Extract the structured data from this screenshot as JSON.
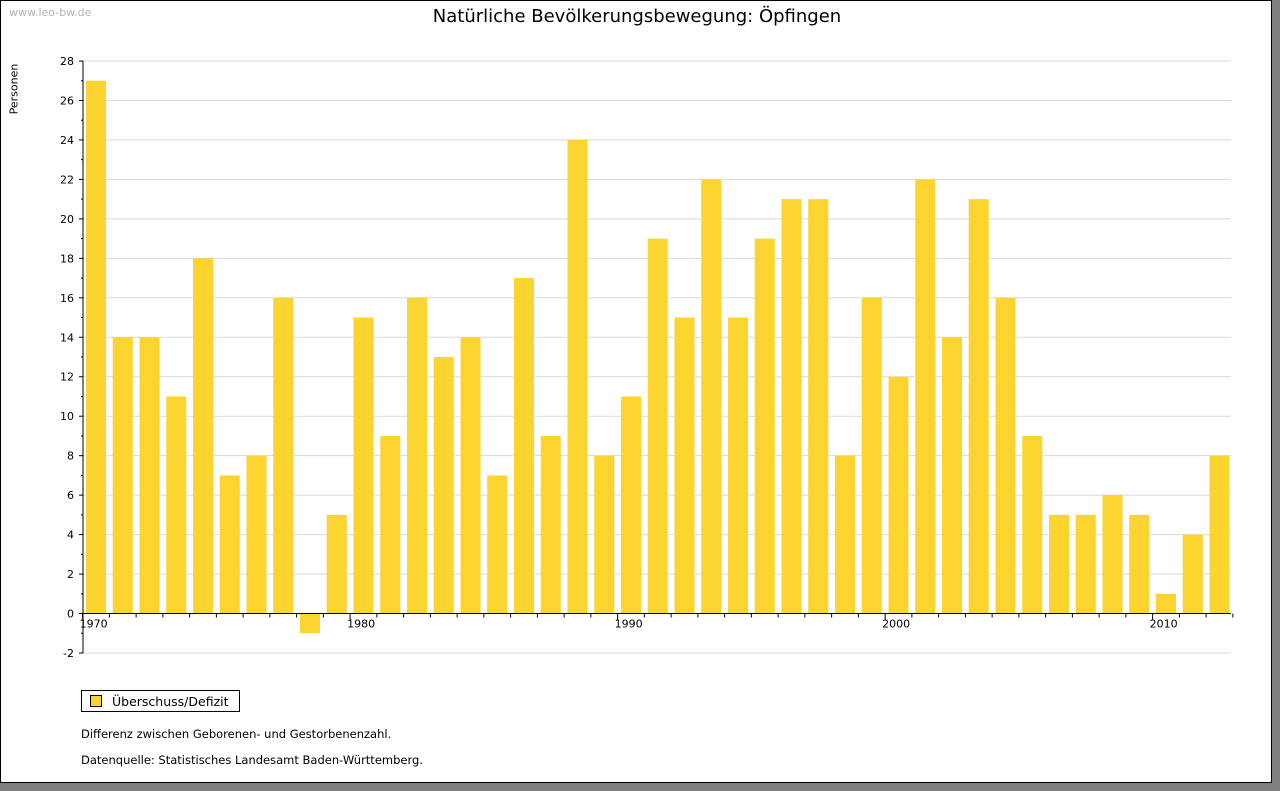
{
  "watermark": "www.leo-bw.de",
  "notes": {
    "line1": "Differenz zwischen Geborenen- und Gestorbenenzahl.",
    "line2": "Datenquelle: Statistisches Landesamt Baden-Württemberg."
  },
  "chart_data": {
    "type": "bar",
    "title": "Natürliche Bevölkerungsbewegung: Öpfingen",
    "xlabel": "",
    "ylabel": "Personen",
    "ylim": [
      -2,
      28
    ],
    "yticks": [
      -2,
      0,
      2,
      4,
      6,
      8,
      10,
      12,
      14,
      16,
      18,
      20,
      22,
      24,
      26,
      28
    ],
    "xtick_labels": [
      "1970",
      "1980",
      "1990",
      "2000",
      "2010"
    ],
    "grid": true,
    "legend": "bottom-left",
    "bar_color": "#fcd42f",
    "categories": [
      1970,
      1971,
      1972,
      1973,
      1974,
      1975,
      1976,
      1977,
      1978,
      1979,
      1980,
      1981,
      1982,
      1983,
      1984,
      1985,
      1986,
      1987,
      1988,
      1989,
      1990,
      1991,
      1992,
      1993,
      1994,
      1995,
      1996,
      1997,
      1998,
      1999,
      2000,
      2001,
      2002,
      2003,
      2004,
      2005,
      2006,
      2007,
      2008,
      2009,
      2010,
      2011,
      2012
    ],
    "series": [
      {
        "name": "Überschuss/Defizit",
        "values": [
          27,
          14,
          14,
          11,
          18,
          7,
          8,
          16,
          -1,
          5,
          15,
          9,
          16,
          13,
          14,
          7,
          17,
          9,
          24,
          8,
          11,
          19,
          15,
          22,
          15,
          19,
          21,
          21,
          8,
          16,
          12,
          22,
          14,
          21,
          16,
          9,
          5,
          5,
          6,
          5,
          1,
          4,
          8
        ]
      }
    ]
  }
}
